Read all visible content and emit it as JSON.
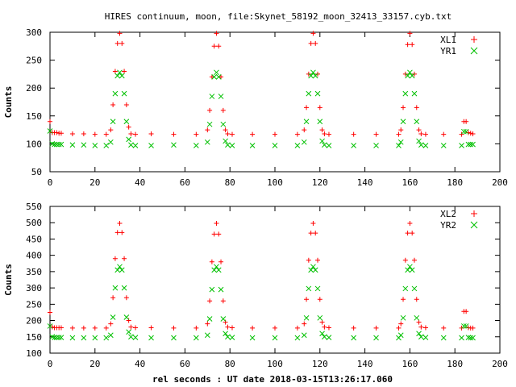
{
  "title": "HIRES continuum, moon, file:Skynet_58192_moon_32413_33157.cyb.txt",
  "xlabel": "rel seconds : UT date 2018-03-15T13:26:17.060",
  "colors": {
    "red": "#ff0000",
    "green": "#00c000"
  },
  "chart_data": [
    {
      "type": "scatter",
      "ylabel": "Counts",
      "xlim": [
        0,
        200
      ],
      "ylim": [
        50,
        300
      ],
      "xticks": [
        "0",
        "20",
        "40",
        "60",
        "80",
        "100",
        "120",
        "140",
        "160",
        "180",
        "200"
      ],
      "yticks": [
        "50",
        "100",
        "150",
        "200",
        "250",
        "300"
      ],
      "legend_position": "top-right",
      "series": [
        {
          "name": "XL1",
          "marker": "plus",
          "color": "#ff0000",
          "x": [
            0,
            1,
            2,
            3,
            4,
            5,
            10,
            15,
            20,
            25,
            27,
            28,
            29,
            30,
            31,
            32,
            33,
            34,
            35,
            36,
            38,
            45,
            55,
            65,
            70,
            71,
            72,
            73,
            74,
            75,
            76,
            77,
            78,
            79,
            81,
            90,
            100,
            110,
            113,
            114,
            115,
            116,
            117,
            118,
            119,
            120,
            121,
            122,
            124,
            135,
            145,
            155,
            156,
            157,
            158,
            159,
            160,
            161,
            162,
            163,
            164,
            165,
            167,
            175,
            183,
            184,
            185,
            186,
            187,
            188
          ],
          "y": [
            140,
            120,
            120,
            120,
            119,
            119,
            118,
            118,
            117,
            117,
            125,
            170,
            230,
            280,
            298,
            280,
            230,
            170,
            130,
            118,
            117,
            118,
            117,
            117,
            125,
            160,
            220,
            275,
            298,
            275,
            220,
            160,
            125,
            118,
            117,
            117,
            117,
            117,
            125,
            165,
            225,
            280,
            298,
            280,
            225,
            165,
            125,
            118,
            117,
            117,
            117,
            117,
            125,
            165,
            225,
            278,
            298,
            278,
            225,
            165,
            125,
            118,
            117,
            117,
            117,
            140,
            140,
            120,
            119,
            118
          ]
        },
        {
          "name": "YR1",
          "marker": "cross",
          "color": "#00c000",
          "x": [
            0,
            1,
            2,
            3,
            4,
            5,
            10,
            15,
            20,
            25,
            27,
            28,
            29,
            30,
            31,
            32,
            33,
            34,
            35,
            36,
            38,
            45,
            55,
            65,
            70,
            71,
            72,
            73,
            74,
            75,
            76,
            77,
            78,
            79,
            81,
            90,
            100,
            110,
            113,
            114,
            115,
            116,
            117,
            118,
            119,
            120,
            121,
            122,
            124,
            135,
            145,
            155,
            156,
            157,
            158,
            159,
            160,
            161,
            162,
            163,
            164,
            165,
            167,
            175,
            183,
            184,
            185,
            186,
            187,
            188
          ],
          "y": [
            123,
            100,
            99,
            99,
            99,
            99,
            98,
            98,
            97,
            97,
            103,
            140,
            190,
            222,
            228,
            222,
            190,
            140,
            108,
            98,
            97,
            97,
            98,
            97,
            103,
            135,
            185,
            220,
            228,
            220,
            185,
            135,
            105,
            98,
            97,
            97,
            97,
            97,
            103,
            140,
            190,
            222,
            228,
            222,
            190,
            140,
            105,
            98,
            97,
            97,
            97,
            97,
            103,
            140,
            190,
            222,
            228,
            222,
            190,
            140,
            105,
            98,
            97,
            97,
            97,
            122,
            122,
            99,
            99,
            99
          ]
        }
      ]
    },
    {
      "type": "scatter",
      "ylabel": "Counts",
      "xlim": [
        0,
        200
      ],
      "ylim": [
        100,
        550
      ],
      "xticks": [
        "0",
        "20",
        "40",
        "60",
        "80",
        "100",
        "120",
        "140",
        "160",
        "180",
        "200"
      ],
      "yticks": [
        "100",
        "150",
        "200",
        "250",
        "300",
        "350",
        "400",
        "450",
        "500",
        "550"
      ],
      "legend_position": "top-right",
      "series": [
        {
          "name": "XL2",
          "marker": "plus",
          "color": "#ff0000",
          "x": [
            0,
            1,
            2,
            3,
            4,
            5,
            10,
            15,
            20,
            25,
            27,
            28,
            29,
            30,
            31,
            32,
            33,
            34,
            35,
            36,
            38,
            45,
            55,
            65,
            70,
            71,
            72,
            73,
            74,
            75,
            76,
            77,
            78,
            79,
            81,
            90,
            100,
            110,
            113,
            114,
            115,
            116,
            117,
            118,
            119,
            120,
            121,
            122,
            124,
            135,
            145,
            155,
            156,
            157,
            158,
            159,
            160,
            161,
            162,
            163,
            164,
            165,
            167,
            175,
            183,
            184,
            185,
            186,
            187,
            188
          ],
          "y": [
            225,
            180,
            178,
            178,
            178,
            178,
            177,
            177,
            177,
            177,
            190,
            270,
            390,
            470,
            498,
            470,
            390,
            270,
            200,
            180,
            178,
            178,
            177,
            177,
            190,
            260,
            380,
            465,
            498,
            465,
            380,
            260,
            195,
            180,
            178,
            177,
            177,
            177,
            190,
            265,
            385,
            468,
            498,
            468,
            385,
            265,
            195,
            180,
            178,
            177,
            177,
            177,
            190,
            265,
            385,
            468,
            498,
            468,
            385,
            265,
            195,
            180,
            178,
            177,
            177,
            228,
            228,
            178,
            177,
            177
          ]
        },
        {
          "name": "YR2",
          "marker": "cross",
          "color": "#00c000",
          "x": [
            0,
            1,
            2,
            3,
            4,
            5,
            10,
            15,
            20,
            25,
            27,
            28,
            29,
            30,
            31,
            32,
            33,
            34,
            35,
            36,
            38,
            45,
            55,
            65,
            70,
            71,
            72,
            73,
            74,
            75,
            76,
            77,
            78,
            79,
            81,
            90,
            100,
            110,
            113,
            114,
            115,
            116,
            117,
            118,
            119,
            120,
            121,
            122,
            124,
            135,
            145,
            155,
            156,
            157,
            158,
            159,
            160,
            161,
            162,
            163,
            164,
            165,
            167,
            175,
            183,
            184,
            185,
            186,
            187,
            188
          ],
          "y": [
            183,
            150,
            148,
            148,
            148,
            148,
            147,
            147,
            147,
            147,
            155,
            210,
            300,
            355,
            365,
            355,
            300,
            210,
            165,
            150,
            148,
            147,
            147,
            147,
            155,
            205,
            295,
            355,
            365,
            355,
            295,
            205,
            160,
            150,
            148,
            147,
            147,
            147,
            155,
            208,
            298,
            355,
            365,
            355,
            298,
            208,
            160,
            150,
            148,
            147,
            147,
            147,
            155,
            208,
            298,
            355,
            365,
            355,
            298,
            208,
            160,
            150,
            148,
            147,
            147,
            183,
            183,
            148,
            147,
            147
          ]
        }
      ]
    }
  ]
}
